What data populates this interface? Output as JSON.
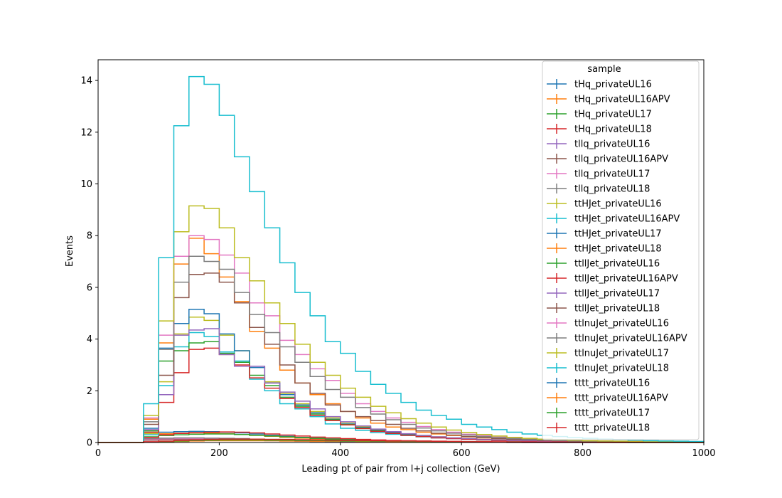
{
  "chart_data": {
    "type": "line",
    "subtype": "step-histogram",
    "xlabel": "Leading pt of pair from l+j collection (GeV)",
    "ylabel": "Events",
    "xlim": [
      0,
      1000
    ],
    "ylim": [
      0,
      14.8
    ],
    "xticks": [
      0,
      200,
      400,
      600,
      800,
      1000
    ],
    "yticks": [
      0,
      2,
      4,
      6,
      8,
      10,
      12,
      14
    ],
    "grid": false,
    "legend": {
      "title": "sample",
      "position": "top-right"
    },
    "bin_edges": [
      0,
      25,
      50,
      75,
      100,
      125,
      150,
      175,
      200,
      225,
      250,
      275,
      300,
      325,
      350,
      375,
      400,
      425,
      450,
      475,
      500,
      525,
      550,
      575,
      600,
      625,
      650,
      675,
      700,
      725,
      750,
      775,
      800,
      825,
      850,
      875,
      900,
      925,
      950,
      975,
      1000
    ],
    "series": [
      {
        "name": "tHq_privateUL16",
        "color": "#1f77b4",
        "values": [
          0,
          0,
          0,
          0.35,
          0.4,
          0.42,
          0.43,
          0.42,
          0.4,
          0.37,
          0.33,
          0.28,
          0.24,
          0.2,
          0.17,
          0.14,
          0.12,
          0.1,
          0.08,
          0.07,
          0.06,
          0.05,
          0.04,
          0.03,
          0.03,
          0.02,
          0.02,
          0.02,
          0.01,
          0.01,
          0.01,
          0.01,
          0.01,
          0.01,
          0.01,
          0,
          0,
          0,
          0,
          0
        ]
      },
      {
        "name": "tHq_privateUL16APV",
        "color": "#ff7f0e",
        "values": [
          0,
          0,
          0,
          0.3,
          0.34,
          0.36,
          0.37,
          0.36,
          0.34,
          0.31,
          0.28,
          0.24,
          0.2,
          0.17,
          0.14,
          0.12,
          0.1,
          0.08,
          0.07,
          0.06,
          0.05,
          0.04,
          0.03,
          0.03,
          0.02,
          0.02,
          0.02,
          0.01,
          0.01,
          0.01,
          0.01,
          0.01,
          0.01,
          0,
          0,
          0,
          0,
          0,
          0,
          0
        ]
      },
      {
        "name": "tHq_privateUL17",
        "color": "#2ca02c",
        "values": [
          0,
          0,
          0,
          0.22,
          0.27,
          0.3,
          0.32,
          0.33,
          0.33,
          0.31,
          0.28,
          0.25,
          0.22,
          0.19,
          0.16,
          0.13,
          0.11,
          0.09,
          0.08,
          0.06,
          0.05,
          0.04,
          0.04,
          0.03,
          0.02,
          0.02,
          0.02,
          0.01,
          0.01,
          0.01,
          0.01,
          0.01,
          0.01,
          0,
          0,
          0,
          0,
          0,
          0,
          0
        ]
      },
      {
        "name": "tHq_privateUL18",
        "color": "#d62728",
        "values": [
          0,
          0,
          0,
          0.2,
          0.3,
          0.35,
          0.38,
          0.4,
          0.41,
          0.4,
          0.37,
          0.33,
          0.29,
          0.25,
          0.21,
          0.18,
          0.15,
          0.12,
          0.1,
          0.08,
          0.07,
          0.06,
          0.05,
          0.04,
          0.03,
          0.03,
          0.02,
          0.02,
          0.02,
          0.01,
          0.01,
          0.01,
          0.01,
          0.01,
          0,
          0,
          0,
          0,
          0,
          0
        ]
      },
      {
        "name": "tllq_privateUL16",
        "color": "#9467bd",
        "values": [
          0,
          0,
          0,
          0.1,
          0.12,
          0.13,
          0.13,
          0.12,
          0.11,
          0.1,
          0.09,
          0.08,
          0.07,
          0.06,
          0.05,
          0.04,
          0.04,
          0.03,
          0.03,
          0.02,
          0.02,
          0.02,
          0.01,
          0.01,
          0.01,
          0.01,
          0.01,
          0.01,
          0,
          0,
          0,
          0,
          0,
          0,
          0,
          0,
          0,
          0,
          0,
          0
        ]
      },
      {
        "name": "tllq_privateUL16APV",
        "color": "#8c564b",
        "values": [
          0,
          0,
          0,
          0.09,
          0.11,
          0.12,
          0.12,
          0.11,
          0.1,
          0.09,
          0.08,
          0.07,
          0.06,
          0.05,
          0.04,
          0.04,
          0.03,
          0.03,
          0.02,
          0.02,
          0.02,
          0.01,
          0.01,
          0.01,
          0.01,
          0.01,
          0.01,
          0,
          0,
          0,
          0,
          0,
          0,
          0,
          0,
          0,
          0,
          0,
          0,
          0
        ]
      },
      {
        "name": "tllq_privateUL17",
        "color": "#e377c2",
        "values": [
          0,
          0,
          0,
          0.12,
          0.14,
          0.15,
          0.15,
          0.14,
          0.13,
          0.12,
          0.11,
          0.1,
          0.08,
          0.07,
          0.06,
          0.05,
          0.04,
          0.04,
          0.03,
          0.03,
          0.02,
          0.02,
          0.02,
          0.01,
          0.01,
          0.01,
          0.01,
          0.01,
          0.01,
          0,
          0,
          0,
          0,
          0,
          0,
          0,
          0,
          0,
          0,
          0
        ]
      },
      {
        "name": "tllq_privateUL18",
        "color": "#7f7f7f",
        "values": [
          0,
          0,
          0,
          0.15,
          0.17,
          0.18,
          0.18,
          0.17,
          0.16,
          0.15,
          0.13,
          0.12,
          0.1,
          0.09,
          0.07,
          0.06,
          0.05,
          0.05,
          0.04,
          0.03,
          0.03,
          0.02,
          0.02,
          0.02,
          0.01,
          0.01,
          0.01,
          0.01,
          0.01,
          0,
          0,
          0,
          0,
          0,
          0,
          0,
          0,
          0,
          0,
          0
        ]
      },
      {
        "name": "ttHJet_privateUL16",
        "color": "#bcbd22",
        "values": [
          0,
          0,
          0,
          0.35,
          2.35,
          4.2,
          4.85,
          4.72,
          4.15,
          3.55,
          2.95,
          2.35,
          1.9,
          1.5,
          1.2,
          0.95,
          0.78,
          0.62,
          0.5,
          0.4,
          0.33,
          0.27,
          0.22,
          0.18,
          0.15,
          0.12,
          0.1,
          0.08,
          0.07,
          0.06,
          0.05,
          0.04,
          0.03,
          0.03,
          0.02,
          0.02,
          0.02,
          0.01,
          0.01,
          0.01
        ]
      },
      {
        "name": "ttHJet_privateUL16APV",
        "color": "#17becf",
        "values": [
          0,
          0,
          0,
          0.3,
          2.2,
          3.7,
          4.25,
          4.1,
          3.5,
          3.15,
          2.45,
          2.0,
          1.5,
          1.3,
          1.0,
          0.72,
          0.55,
          0.47,
          0.38,
          0.32,
          0.27,
          0.22,
          0.18,
          0.15,
          0.12,
          0.1,
          0.08,
          0.07,
          0.06,
          0.05,
          0.04,
          0.03,
          0.03,
          0.02,
          0.02,
          0.02,
          0.01,
          0.01,
          0.01,
          0.01
        ]
      },
      {
        "name": "ttHJet_privateUL17",
        "color": "#1f77b4",
        "values": [
          0,
          0,
          0,
          0.55,
          3.65,
          4.6,
          5.15,
          4.98,
          4.2,
          3.55,
          2.9,
          2.3,
          1.85,
          1.45,
          1.15,
          0.9,
          0.72,
          0.58,
          0.47,
          0.38,
          0.31,
          0.25,
          0.2,
          0.17,
          0.14,
          0.11,
          0.09,
          0.08,
          0.06,
          0.05,
          0.04,
          0.04,
          0.03,
          0.03,
          0.02,
          0.02,
          0.02,
          0.01,
          0.01,
          0.01
        ]
      },
      {
        "name": "ttHJet_privateUL18",
        "color": "#ff7f0e",
        "values": [
          0,
          0,
          0,
          0.9,
          3.85,
          6.9,
          7.9,
          7.3,
          6.4,
          5.45,
          4.3,
          3.65,
          2.8,
          2.3,
          1.85,
          1.5,
          1.2,
          0.95,
          0.75,
          0.6,
          0.5,
          0.4,
          0.33,
          0.27,
          0.22,
          0.18,
          0.15,
          0.12,
          0.1,
          0.08,
          0.07,
          0.06,
          0.05,
          0.04,
          0.03,
          0.03,
          0.02,
          0.02,
          0.02,
          0.01
        ]
      },
      {
        "name": "ttllJet_privateUL16",
        "color": "#2ca02c",
        "values": [
          0,
          0,
          0,
          0.45,
          3.15,
          3.55,
          3.85,
          3.9,
          3.45,
          3.1,
          2.6,
          2.2,
          1.75,
          1.4,
          1.1,
          0.88,
          0.7,
          0.56,
          0.45,
          0.36,
          0.29,
          0.24,
          0.19,
          0.16,
          0.13,
          0.1,
          0.08,
          0.07,
          0.06,
          0.05,
          0.04,
          0.03,
          0.03,
          0.02,
          0.02,
          0.02,
          0.01,
          0.01,
          0.01,
          0.01
        ]
      },
      {
        "name": "ttllJet_privateUL16APV",
        "color": "#d62728",
        "values": [
          0,
          0,
          0,
          0.4,
          1.55,
          2.7,
          3.6,
          3.65,
          3.4,
          3.0,
          2.5,
          2.1,
          1.7,
          1.35,
          1.05,
          0.85,
          0.68,
          0.54,
          0.43,
          0.35,
          0.28,
          0.23,
          0.18,
          0.15,
          0.12,
          0.1,
          0.08,
          0.07,
          0.05,
          0.04,
          0.04,
          0.03,
          0.02,
          0.02,
          0.02,
          0.01,
          0.01,
          0.01,
          0.01,
          0.01
        ]
      },
      {
        "name": "ttllJet_privateUL17",
        "color": "#9467bd",
        "values": [
          0,
          0,
          0,
          0.5,
          1.85,
          4.15,
          4.35,
          4.4,
          3.4,
          2.95,
          2.95,
          2.3,
          1.95,
          1.6,
          1.3,
          1.0,
          0.8,
          0.64,
          0.52,
          0.42,
          0.34,
          0.27,
          0.22,
          0.18,
          0.15,
          0.12,
          0.1,
          0.08,
          0.07,
          0.05,
          0.04,
          0.04,
          0.03,
          0.03,
          0.02,
          0.02,
          0.01,
          0.01,
          0.01,
          0.01
        ]
      },
      {
        "name": "ttllJet_privateUL18",
        "color": "#8c564b",
        "values": [
          0,
          0,
          0,
          0.7,
          2.6,
          5.6,
          6.5,
          6.55,
          6.2,
          5.4,
          4.45,
          3.8,
          3.0,
          2.3,
          1.9,
          1.45,
          1.2,
          1.0,
          0.85,
          0.7,
          0.55,
          0.45,
          0.36,
          0.29,
          0.23,
          0.19,
          0.15,
          0.12,
          0.1,
          0.08,
          0.07,
          0.06,
          0.05,
          0.04,
          0.03,
          0.03,
          0.02,
          0.02,
          0.02,
          0.01
        ]
      },
      {
        "name": "ttlnuJet_privateUL16",
        "color": "#e377c2",
        "values": [
          0,
          0,
          0,
          0.95,
          4.15,
          7.2,
          8.0,
          7.85,
          7.25,
          6.55,
          5.4,
          4.9,
          3.95,
          3.4,
          2.85,
          2.4,
          1.9,
          1.5,
          1.2,
          0.95,
          0.78,
          0.62,
          0.5,
          0.4,
          0.32,
          0.26,
          0.21,
          0.17,
          0.14,
          0.11,
          0.09,
          0.08,
          0.06,
          0.05,
          0.04,
          0.04,
          0.03,
          0.02,
          0.02,
          0.02
        ]
      },
      {
        "name": "ttlnuJet_privateUL16APV",
        "color": "#7f7f7f",
        "values": [
          0,
          0,
          0,
          0.8,
          3.6,
          6.2,
          7.2,
          7.0,
          6.7,
          5.8,
          4.95,
          4.25,
          3.7,
          3.1,
          2.55,
          2.05,
          1.75,
          1.35,
          1.1,
          0.88,
          0.7,
          0.56,
          0.45,
          0.36,
          0.29,
          0.23,
          0.19,
          0.15,
          0.12,
          0.1,
          0.08,
          0.07,
          0.05,
          0.04,
          0.04,
          0.03,
          0.02,
          0.02,
          0.02,
          0.01
        ]
      },
      {
        "name": "ttlnuJet_privateUL17",
        "color": "#bcbd22",
        "values": [
          0,
          0,
          0,
          1.05,
          4.7,
          8.15,
          9.15,
          9.05,
          8.3,
          7.15,
          6.25,
          5.4,
          4.6,
          3.8,
          3.1,
          2.6,
          2.1,
          1.75,
          1.4,
          1.15,
          0.92,
          0.75,
          0.6,
          0.48,
          0.39,
          0.31,
          0.25,
          0.2,
          0.16,
          0.13,
          0.11,
          0.09,
          0.07,
          0.06,
          0.05,
          0.04,
          0.03,
          0.03,
          0.02,
          0.02
        ]
      },
      {
        "name": "ttlnuJet_privateUL18",
        "color": "#17becf",
        "values": [
          0,
          0,
          0,
          1.5,
          7.15,
          12.25,
          14.15,
          13.85,
          12.65,
          11.05,
          9.7,
          8.3,
          6.95,
          5.8,
          4.9,
          3.9,
          3.45,
          2.75,
          2.25,
          1.9,
          1.55,
          1.25,
          1.05,
          0.9,
          0.7,
          0.6,
          0.5,
          0.4,
          0.33,
          0.28,
          0.23,
          0.19,
          0.16,
          0.13,
          0.11,
          0.09,
          0.07,
          0.06,
          0.05,
          0.04
        ]
      },
      {
        "name": "tttt_privateUL16",
        "color": "#1f77b4",
        "values": [
          0,
          0,
          0,
          0.02,
          0.03,
          0.05,
          0.07,
          0.08,
          0.08,
          0.08,
          0.08,
          0.08,
          0.07,
          0.07,
          0.06,
          0.06,
          0.05,
          0.05,
          0.04,
          0.04,
          0.03,
          0.03,
          0.03,
          0.02,
          0.02,
          0.02,
          0.02,
          0.01,
          0.01,
          0.01,
          0.01,
          0.01,
          0.01,
          0.01,
          0,
          0,
          0,
          0,
          0,
          0
        ]
      },
      {
        "name": "tttt_privateUL16APV",
        "color": "#ff7f0e",
        "values": [
          0,
          0,
          0,
          0.02,
          0.03,
          0.04,
          0.06,
          0.07,
          0.07,
          0.07,
          0.07,
          0.07,
          0.06,
          0.06,
          0.05,
          0.05,
          0.05,
          0.04,
          0.04,
          0.03,
          0.03,
          0.03,
          0.02,
          0.02,
          0.02,
          0.02,
          0.01,
          0.01,
          0.01,
          0.01,
          0.01,
          0.01,
          0.01,
          0,
          0,
          0,
          0,
          0,
          0,
          0
        ]
      },
      {
        "name": "tttt_privateUL17",
        "color": "#2ca02c",
        "values": [
          0,
          0,
          0,
          0.02,
          0.04,
          0.06,
          0.08,
          0.09,
          0.1,
          0.1,
          0.1,
          0.09,
          0.09,
          0.08,
          0.08,
          0.07,
          0.06,
          0.06,
          0.05,
          0.05,
          0.04,
          0.04,
          0.03,
          0.03,
          0.03,
          0.02,
          0.02,
          0.02,
          0.02,
          0.01,
          0.01,
          0.01,
          0.01,
          0.01,
          0.01,
          0,
          0,
          0,
          0,
          0
        ]
      },
      {
        "name": "tttt_privateUL18",
        "color": "#d62728",
        "values": [
          0,
          0,
          0,
          0.03,
          0.05,
          0.08,
          0.1,
          0.12,
          0.13,
          0.13,
          0.13,
          0.12,
          0.12,
          0.11,
          0.1,
          0.09,
          0.08,
          0.08,
          0.07,
          0.06,
          0.06,
          0.05,
          0.04,
          0.04,
          0.03,
          0.03,
          0.03,
          0.02,
          0.02,
          0.02,
          0.02,
          0.01,
          0.01,
          0.01,
          0.01,
          0.01,
          0,
          0,
          0,
          0
        ]
      }
    ]
  }
}
